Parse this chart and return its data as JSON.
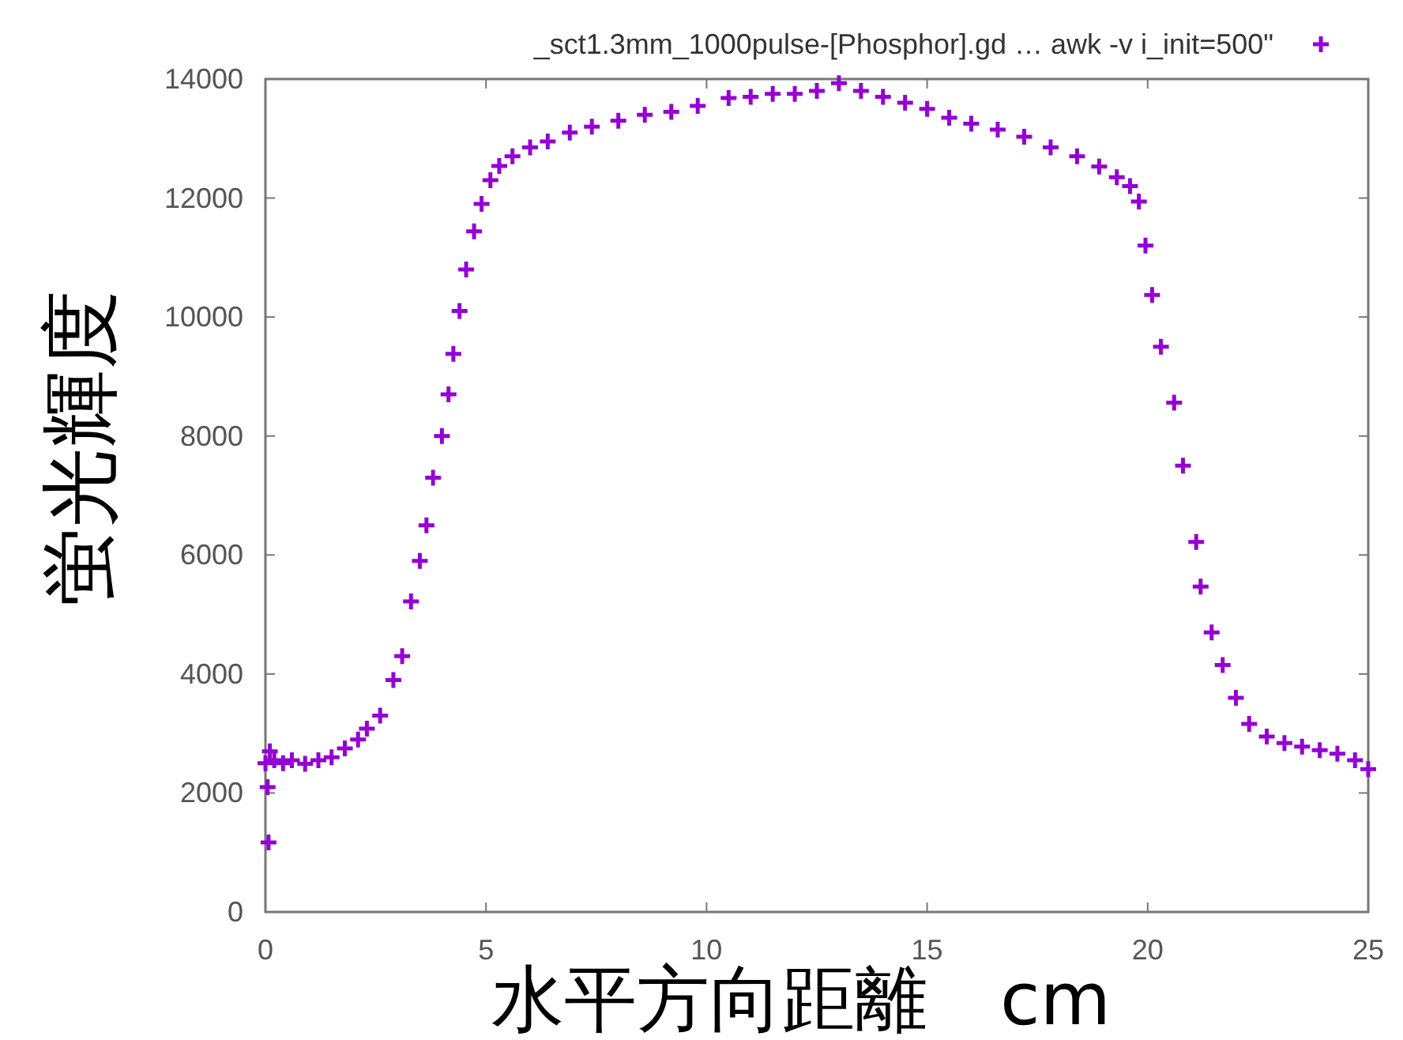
{
  "chart_data": {
    "type": "scatter",
    "xlabel": "水平方向距離　cm",
    "ylabel": "蛍光輝度",
    "xlim": [
      0,
      25
    ],
    "xticks": [
      0,
      5,
      10,
      15,
      20,
      25
    ],
    "ylim": [
      0,
      14000
    ],
    "yticks": [
      0,
      2000,
      4000,
      6000,
      8000,
      10000,
      12000,
      14000
    ],
    "grid": false,
    "legend": "top",
    "marker": "cross",
    "series": [
      {
        "name": "_sct1.3mm_1000pulse-[Phosphor].gd … awk -v i_init=500\"",
        "color": "#9400d3",
        "x": [
          0,
          0.05,
          0.07,
          0.1,
          0.2,
          0.4,
          0.6,
          0.9,
          1.2,
          1.5,
          1.8,
          2.1,
          2.3,
          2.6,
          2.9,
          3.1,
          3.3,
          3.5,
          3.65,
          3.8,
          4.0,
          4.15,
          4.26,
          4.4,
          4.55,
          4.73,
          4.9,
          5.1,
          5.3,
          5.6,
          6.0,
          6.4,
          6.9,
          7.4,
          8.0,
          8.6,
          9.2,
          9.8,
          10.5,
          11.0,
          11.5,
          12.0,
          12.5,
          13.0,
          13.5,
          14.0,
          14.5,
          15.0,
          15.5,
          16.0,
          16.6,
          17.2,
          17.8,
          18.4,
          18.9,
          19.3,
          19.6,
          19.8,
          19.95,
          20.1,
          20.3,
          20.6,
          20.8,
          21.1,
          21.2,
          21.45,
          21.7,
          22.0,
          22.3,
          22.7,
          23.1,
          23.5,
          23.9,
          24.3,
          24.7,
          25.0
        ],
        "values": [
          2500,
          2100,
          1170,
          2700,
          2550,
          2500,
          2550,
          2490,
          2550,
          2600,
          2750,
          2900,
          3080,
          3300,
          3900,
          4300,
          5220,
          5900,
          6500,
          7300,
          8000,
          8700,
          9380,
          10100,
          10800,
          11440,
          11900,
          12300,
          12540,
          12700,
          12850,
          12950,
          13100,
          13200,
          13300,
          13400,
          13450,
          13550,
          13680,
          13700,
          13750,
          13750,
          13800,
          13930,
          13800,
          13700,
          13600,
          13500,
          13350,
          13250,
          13150,
          13030,
          12850,
          12700,
          12530,
          12350,
          12200,
          11940,
          11200,
          10370,
          9500,
          8560,
          7500,
          6220,
          5470,
          4700,
          4150,
          3600,
          3160,
          2950,
          2840,
          2780,
          2720,
          2660,
          2550,
          2400
        ]
      }
    ]
  }
}
